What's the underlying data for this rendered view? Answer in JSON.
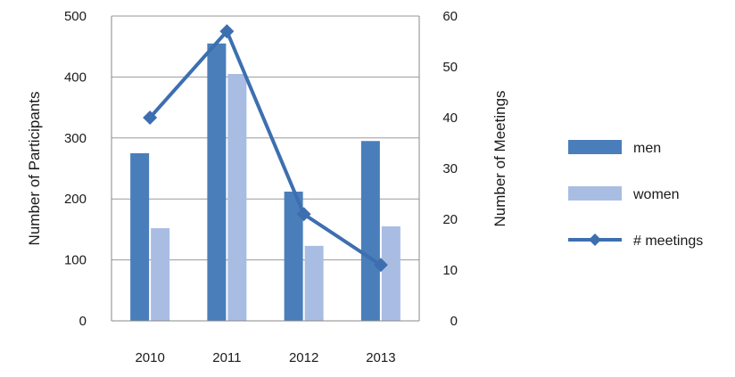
{
  "chart_data": {
    "type": "bar",
    "title": "",
    "categories": [
      "2010",
      "2011",
      "2012",
      "2013"
    ],
    "series": [
      {
        "name": "men",
        "type": "bar",
        "axis": "left",
        "color": "#4a7ebb",
        "values": [
          275,
          455,
          212,
          295
        ]
      },
      {
        "name": "women",
        "type": "bar",
        "axis": "left",
        "color": "#a9bde3",
        "values": [
          152,
          405,
          123,
          155
        ]
      },
      {
        "name": "# meetings",
        "type": "line",
        "axis": "right",
        "color": "#3d6fb0",
        "marker": "diamond",
        "values": [
          40,
          57,
          21,
          11
        ]
      }
    ],
    "ylabel": "Number of Participants",
    "y2label": "Number of Meetings",
    "ylim": [
      0,
      500
    ],
    "y2lim": [
      0,
      60
    ],
    "yticks": [
      "0",
      "100",
      "200",
      "300",
      "400",
      "500"
    ],
    "y2ticks": [
      "0",
      "10",
      "20",
      "30",
      "40",
      "50",
      "60"
    ],
    "grid": true,
    "legend_position": "right"
  }
}
